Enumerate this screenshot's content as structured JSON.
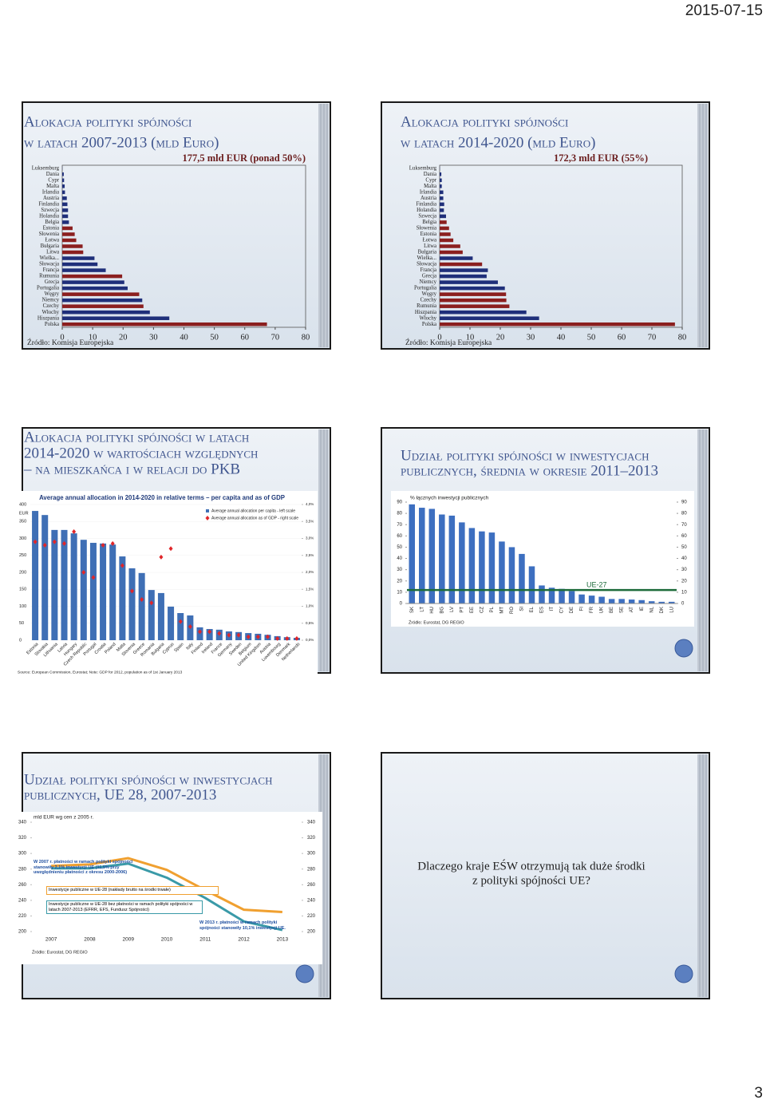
{
  "header": {
    "date": "2015-07-15"
  },
  "page_number": "3",
  "slides": [
    {
      "title_lines": [
        "Alokacja polityki spójności",
        "w latach 2007-2013 (mld Euro)"
      ],
      "chart_data": {
        "type": "bar",
        "orientation": "horizontal",
        "annotation": "177,5 mld EUR (ponad 50%)",
        "source": "Źródło: Komisja Europejska",
        "categories": [
          "Luksemburg",
          "Dania",
          "Cypr",
          "Malta",
          "Irlandia",
          "Austria",
          "Finlandia",
          "Szwecja",
          "Holandia",
          "Belgia",
          "Estonia",
          "Słowenia",
          "Łotwa",
          "Bułgaria",
          "Litwa",
          "Wielka...",
          "Słowacja",
          "Francja",
          "Rumunia",
          "Grecja",
          "Portugalia",
          "Węgry",
          "Niemcy",
          "Czechy",
          "Włochy",
          "Hiszpania",
          "Polska"
        ],
        "values": [
          0.05,
          0.5,
          0.6,
          0.8,
          0.9,
          1.5,
          1.7,
          1.9,
          1.9,
          2.2,
          3.4,
          4.1,
          4.6,
          6.7,
          6.9,
          10.6,
          11.6,
          14.3,
          19.7,
          20.4,
          21.5,
          25.3,
          26.3,
          26.7,
          28.8,
          35.2,
          67.3
        ],
        "colors": [
          "#1f2f7a",
          "#1f2f7a",
          "#1f2f7a",
          "#1f2f7a",
          "#1f2f7a",
          "#1f2f7a",
          "#1f2f7a",
          "#1f2f7a",
          "#1f2f7a",
          "#1f2f7a",
          "#8b1f1f",
          "#8b1f1f",
          "#8b1f1f",
          "#8b1f1f",
          "#8b1f1f",
          "#1f2f7a",
          "#1f2f7a",
          "#1f2f7a",
          "#8b1f1f",
          "#1f2f7a",
          "#1f2f7a",
          "#8b1f1f",
          "#1f2f7a",
          "#8b1f1f",
          "#1f2f7a",
          "#1f2f7a",
          "#8b1f1f"
        ],
        "xlim": [
          0,
          80
        ],
        "xticks": [
          0,
          10,
          20,
          30,
          40,
          50,
          60,
          70,
          80
        ]
      }
    },
    {
      "title_lines": [
        "Alokacja polityki spójności",
        "w latach 2014-2020 (mld Euro)"
      ],
      "chart_data": {
        "type": "bar",
        "orientation": "horizontal",
        "annotation": "172,3 mld EUR (55%)",
        "source": "Źródło: Komisja Europejska",
        "categories": [
          "Luksemburg",
          "Dania",
          "Cypr",
          "Malta",
          "Irlandia",
          "Austria",
          "Finlandia",
          "Holandia",
          "Szwecja",
          "Belgia",
          "Słowenia",
          "Estonia",
          "Łotwa",
          "Litwa",
          "Bułgaria",
          "Wielka...",
          "Słowacja",
          "Francja",
          "Grecja",
          "Niemcy",
          "Portugalia",
          "Węgry",
          "Czechy",
          "Rumunia",
          "Hiszpania",
          "Włochy",
          "Polska"
        ],
        "values": [
          0.06,
          0.55,
          0.7,
          0.7,
          1.2,
          1.2,
          1.5,
          1.4,
          2.1,
          2.3,
          3.1,
          3.6,
          4.5,
          6.8,
          7.6,
          10.9,
          14.0,
          15.9,
          15.5,
          19.2,
          21.5,
          21.9,
          22.0,
          23.0,
          28.6,
          32.8,
          77.6
        ],
        "colors": [
          "#1f2f7a",
          "#1f2f7a",
          "#1f2f7a",
          "#1f2f7a",
          "#1f2f7a",
          "#1f2f7a",
          "#1f2f7a",
          "#1f2f7a",
          "#1f2f7a",
          "#8b1f1f",
          "#8b1f1f",
          "#8b1f1f",
          "#8b1f1f",
          "#8b1f1f",
          "#8b1f1f",
          "#1f2f7a",
          "#8b1f1f",
          "#1f2f7a",
          "#1f2f7a",
          "#1f2f7a",
          "#1f2f7a",
          "#8b1f1f",
          "#8b1f1f",
          "#8b1f1f",
          "#1f2f7a",
          "#1f2f7a",
          "#8b1f1f"
        ],
        "xlim": [
          0,
          80
        ],
        "xticks": [
          0,
          10,
          20,
          30,
          40,
          50,
          60,
          70,
          80
        ]
      }
    },
    {
      "title_lines": [
        "Alokacja polityki spójności w latach",
        "2014-2020 w wartościach względnych",
        "– na mieszkańca i w relacji do PKB"
      ],
      "chart_data": {
        "type": "combo",
        "title": "Average annual allocation in 2014-2020 in relative terms – per capita and as of GDP",
        "ylabel": "EUR",
        "source": "Source: European Commission, Eurostat; Note: GDP for 2012, population as of 1st January 2013",
        "categories": [
          "Estonia",
          "Slovakia",
          "Lithuania",
          "Latvia",
          "Hungary",
          "Czech Republic",
          "Portugal",
          "Croatia",
          "Poland",
          "Malta",
          "Slovenia",
          "Greece",
          "Romania",
          "Bulgaria",
          "Cyprus",
          "Spain",
          "Italy",
          "Finland",
          "Ireland",
          "France",
          "Germany",
          "Sweden",
          "Belgium",
          "United Kingdom",
          "Austria",
          "Luxembourg",
          "Denmark",
          "Netherlands"
        ],
        "series": [
          {
            "name": "Average annual allocation per capita - left scale",
            "color": "#3f6fb5",
            "values": [
              381,
              369,
              325,
              325,
              315,
              296,
              287,
              285,
              282,
              247,
              212,
              198,
              148,
              139,
              99,
              80,
              73,
              38,
              33,
              31,
              26,
              24,
              21,
              19,
              16,
              12,
              9,
              7
            ]
          },
          {
            "name": "Average annual allocation as of GDP - right scale",
            "color": "#e0262a",
            "axis": "y2",
            "values": [
              2.9,
              2.8,
              2.9,
              2.85,
              3.2,
              2.0,
              1.85,
              2.8,
              2.85,
              2.2,
              1.45,
              1.2,
              1.1,
              2.45,
              2.7,
              0.55,
              0.4,
              0.25,
              0.25,
              0.2,
              0.15,
              0.15,
              0.1,
              0.1,
              0.1,
              0.05,
              0.05,
              0.05
            ]
          }
        ],
        "ylim": [
          0,
          400
        ],
        "yticks": [
          0,
          50,
          100,
          150,
          200,
          250,
          300,
          350,
          400
        ],
        "y2lim": [
          0,
          4
        ],
        "y2ticks": [
          {
            "value": 0,
            "label": "0,0%"
          },
          {
            "value": 0.5,
            "label": "0,5%"
          },
          {
            "value": 1,
            "label": "1,0%"
          },
          {
            "value": 1.5,
            "label": "1,5%"
          },
          {
            "value": 2,
            "label": "2,0%"
          },
          {
            "value": 2.5,
            "label": "2,5%"
          },
          {
            "value": 3,
            "label": "3,0%"
          },
          {
            "value": 3.5,
            "label": "3,5%"
          },
          {
            "value": 4,
            "label": "4,0%"
          }
        ]
      }
    },
    {
      "title_lines": [
        "Udział polityki spójności w inwestycjach",
        "publicznych, średnia w okresie 2011–2013"
      ],
      "chart_data": {
        "type": "bar",
        "orientation": "vertical",
        "ylabel": "% łącznych inwestycji publicznych",
        "source": "Źródło: Eurostat, DG REGIO",
        "categories": [
          "SK",
          "LT",
          "HU",
          "BG",
          "LV",
          "PT",
          "EE",
          "CZ",
          "PL",
          "MT",
          "RO",
          "SI",
          "EL",
          "ES",
          "IT",
          "CY",
          "DE",
          "FI",
          "FR",
          "UK",
          "BE",
          "SE",
          "AT",
          "IE",
          "NL",
          "DK",
          "LU"
        ],
        "values": [
          88,
          85,
          84,
          79,
          78,
          72,
          67,
          64,
          63,
          55,
          50,
          44,
          33,
          16,
          14,
          13,
          11,
          8,
          7,
          6,
          4,
          4,
          3.5,
          3,
          2,
          1.5,
          1.5
        ],
        "color": "#3d6fc0",
        "reference_line": {
          "label": "UE-27",
          "value": 12,
          "color": "#1d6b3a"
        },
        "ylim": [
          0,
          90
        ],
        "yticks": [
          0,
          10,
          20,
          30,
          40,
          50,
          60,
          70,
          80,
          90
        ],
        "y2lim": [
          0,
          90
        ],
        "y2ticks": [
          0,
          10,
          20,
          30,
          40,
          50,
          60,
          70,
          80,
          90
        ]
      }
    },
    {
      "title_lines": [
        "Udział polityki spójności w inwestycjach",
        "publicznych, UE 28, 2007-2013"
      ],
      "chart_data": {
        "type": "line",
        "ylabel": "mld EUR wg cen z 2005 r.",
        "source": "Źródło: Eurostat, DG REGIO",
        "annotations": [
          "W 2007 r. płatności w ramach polityki spójności stanowiły 2,1% inwestycji UE (11,5% przy uwzględnieniu płatności z okresu 2000-2006)",
          "W 2013 r. płatności w ramach polityki spójności stanowiły 10,1% inwestycji UE."
        ],
        "categories": [
          "2007",
          "2008",
          "2009",
          "2010",
          "2011",
          "2012",
          "2013"
        ],
        "series": [
          {
            "name": "Inwestycje publiczne w UE-28 (nakłady brutto na środki trwałe)",
            "color": "#f0a030",
            "values": [
              284,
              286,
              294,
              279,
              253,
              228,
              225
            ]
          },
          {
            "name": "Inwestycje publiczne w UE-28 bez płatności w ramach polityki spójności w latach 2007-2013 (EFRR, EFS, Fundusz Spójności)",
            "color": "#3a9aa8",
            "values": [
              281,
              281,
              287,
              269,
              243,
              213,
              202
            ]
          }
        ],
        "ylim": [
          200,
          340
        ],
        "yticks": [
          200,
          220,
          240,
          260,
          280,
          300,
          320,
          340
        ],
        "y2lim": [
          200,
          340
        ],
        "y2ticks": [
          200,
          220,
          240,
          260,
          280,
          300,
          320,
          340
        ]
      }
    },
    {
      "text_lines": [
        "Dlaczego kraje EŚW otrzymują tak duże środki",
        "z polityki spójności UE?"
      ]
    }
  ]
}
